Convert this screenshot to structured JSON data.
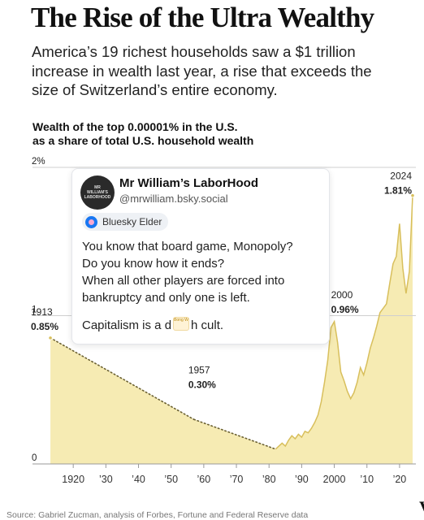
{
  "headline": "The Rise of the Ultra Wealthy",
  "dek": "America’s 19 richest households saw a $1 trillion increase in wealth last year, a rise that exceeds the size of Switzerland’s entire economy.",
  "source": "Source: Gabriel Zucman, analysis of Forbes, Fortune and Federal Reserve data",
  "corner_mark": "V",
  "colors": {
    "area_fill": "#f6ebb3",
    "area_stroke": "#d8bf5c",
    "dotted_line": "#6b6132",
    "gridline": "#cfcfcf",
    "axis": "#999999"
  },
  "chart_data": {
    "type": "area",
    "title": "Wealth of the top 0.00001% in the U.S. as a share of total U.S. household wealth",
    "title_lines": [
      "Wealth of the top 0.00001% in the U.S.",
      "as a share of total U.S. household wealth"
    ],
    "xlim": [
      1910,
      2025
    ],
    "ylim": [
      0,
      2
    ],
    "y_ticks": [
      {
        "value": 0,
        "label": "0"
      },
      {
        "value": 1,
        "label": "1"
      },
      {
        "value": 2,
        "label": "2%"
      }
    ],
    "x_ticks": [
      {
        "value": 1920,
        "label": "1920"
      },
      {
        "value": 1930,
        "label": "’30"
      },
      {
        "value": 1940,
        "label": "’40"
      },
      {
        "value": 1950,
        "label": "’50"
      },
      {
        "value": 1960,
        "label": "’60"
      },
      {
        "value": 1970,
        "label": "’70"
      },
      {
        "value": 1980,
        "label": "’80"
      },
      {
        "value": 1990,
        "label": "’90"
      },
      {
        "value": 2000,
        "label": "2000"
      },
      {
        "value": 2010,
        "label": "’10"
      },
      {
        "value": 2020,
        "label": "’20"
      }
    ],
    "interpolated_segments": [
      [
        1913,
        1957
      ],
      [
        1957,
        1982
      ]
    ],
    "series": [
      {
        "values": [
          [
            1913,
            0.85
          ],
          [
            1957,
            0.3
          ],
          [
            1982,
            0.1
          ],
          [
            1983,
            0.12
          ],
          [
            1984,
            0.14
          ],
          [
            1985,
            0.12
          ],
          [
            1986,
            0.16
          ],
          [
            1987,
            0.19
          ],
          [
            1988,
            0.17
          ],
          [
            1989,
            0.2
          ],
          [
            1990,
            0.18
          ],
          [
            1991,
            0.22
          ],
          [
            1992,
            0.21
          ],
          [
            1993,
            0.24
          ],
          [
            1994,
            0.28
          ],
          [
            1995,
            0.33
          ],
          [
            1996,
            0.42
          ],
          [
            1997,
            0.55
          ],
          [
            1998,
            0.7
          ],
          [
            1999,
            0.92
          ],
          [
            2000,
            0.96
          ],
          [
            2001,
            0.82
          ],
          [
            2002,
            0.62
          ],
          [
            2003,
            0.56
          ],
          [
            2004,
            0.49
          ],
          [
            2005,
            0.44
          ],
          [
            2006,
            0.48
          ],
          [
            2007,
            0.55
          ],
          [
            2008,
            0.65
          ],
          [
            2009,
            0.6
          ],
          [
            2010,
            0.68
          ],
          [
            2011,
            0.78
          ],
          [
            2012,
            0.85
          ],
          [
            2013,
            0.93
          ],
          [
            2014,
            1.02
          ],
          [
            2015,
            1.05
          ],
          [
            2016,
            1.08
          ],
          [
            2017,
            1.22
          ],
          [
            2018,
            1.35
          ],
          [
            2019,
            1.4
          ],
          [
            2020,
            1.62
          ],
          [
            2021,
            1.32
          ],
          [
            2022,
            1.15
          ],
          [
            2023,
            1.3
          ],
          [
            2024,
            1.81
          ]
        ]
      }
    ],
    "annotations": [
      {
        "year_label": "1913",
        "value_label": "0.85%",
        "x": 1913,
        "y": 0.85
      },
      {
        "year_label": "1957",
        "value_label": "0.30%",
        "x": 1957,
        "y": 0.3
      },
      {
        "year_label": "2000",
        "value_label": "0.96%",
        "x": 2000,
        "y": 0.96
      },
      {
        "year_label": "2024",
        "value_label": "1.81%",
        "x": 2024,
        "y": 1.81
      }
    ]
  },
  "post": {
    "author_name": "Mr William’s LaborHood",
    "author_handle": "@mrwilliam.bsky.social",
    "avatar_text": "MR WILLIAM'S LABORHOOD",
    "badge_label": "Bluesky Elder",
    "lines": [
      "You know that board game, Monopoly?",
      "Do you know how it ends?",
      "When all other players are forced into",
      "bankruptcy and only one is left."
    ],
    "last_line_start": "Capitalism is a d",
    "last_line_end": "h cult.",
    "emoji_text": "Bong Worm"
  }
}
